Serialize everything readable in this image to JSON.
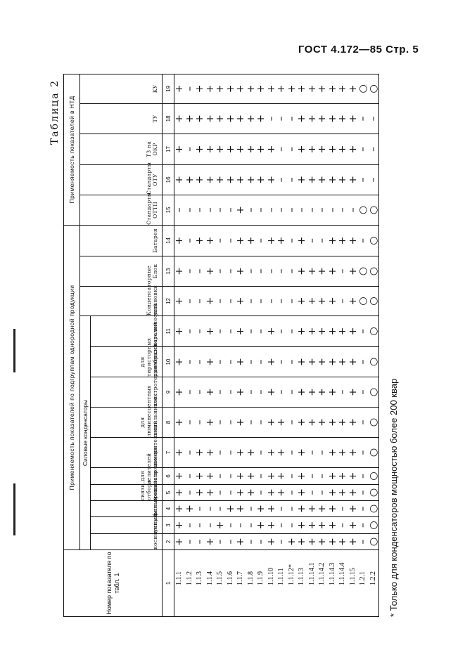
{
  "page_header": "ГОСТ 4.172—85 Стр. 5",
  "table_title": "Таблица 2",
  "groups": {
    "subgroups": "Применяемость показателей по подгруппам однородной продукции",
    "power_capacitors": "Силовые конденсаторы",
    "ntd": "Применяемость показателей в НТД"
  },
  "columns": [
    {
      "num": "1",
      "label": "Номер показателя по табл. 1"
    },
    {
      "num": "2",
      "label": "косинусный",
      "values": "+––+––+––+–+++++++–○"
    },
    {
      "num": "3",
      "label": "импульсный",
      "values": "+–––+–––++––++++–+–○"
    },
    {
      "num": "4",
      "label": "фильтровый",
      "values": "++–––++–++––++++–+–○"
    },
    {
      "num": "5",
      "label": "связи, отбора мощности",
      "values": "+–++––++–++–+––+++–○"
    },
    {
      "num": "6",
      "label": "для делителей напряжения",
      "values": "+–++––++–++–+––+++–○"
    },
    {
      "num": "7",
      "label": "измерительный",
      "values": "+–++––++–++–+––+++–○"
    },
    {
      "num": "8",
      "label": "для люминесцентных светильников",
      "values": "+––+––+––++–++++++–○"
    },
    {
      "num": "9",
      "label": "электротермический",
      "values": "+––+––+––+––++++–+–○"
    },
    {
      "num": "10",
      "label": "для тиристорных преобразователей",
      "values": "+––+––+––+––++++++–○"
    },
    {
      "num": "11",
      "label": "керамический",
      "values": "+––+––+––+––++++++–○"
    },
    {
      "num": "12",
      "label": "Конденсаторные установки",
      "values": "+––+––+–––––++++–+○○"
    },
    {
      "num": "13",
      "label": "Блок",
      "values": "+––+––+–––––++++–+○○"
    },
    {
      "num": "14",
      "label": "Батарея",
      "values": "+–++––++–++–+––+++–○"
    },
    {
      "num": "15",
      "label": "Стандарты ОТТП",
      "values": "––––––+–––––––––––○○"
    },
    {
      "num": "16",
      "label": "Стандарты ОТУ",
      "values": "++++++++++––++++++––"
    },
    {
      "num": "17",
      "label": "ТЗ на ОКР",
      "values": "+–++++++++––++++++––"
    },
    {
      "num": "18",
      "label": "ТУ",
      "values": "+++++++++–––++++++––"
    },
    {
      "num": "19",
      "label": "КУ",
      "values": "+–++++++++++++++++○○"
    }
  ],
  "rows": [
    "1.1.1",
    "1.1.2",
    "1.1.3",
    "1.1.4",
    "1.1.5",
    "1.1.6",
    "1.1.7",
    "1.1.8",
    "1.1.9",
    "1.1.10",
    "1.1.11",
    "1.1.12*",
    "1.1.13",
    "1.1.14.1",
    "1.1.14.2",
    "1.1.14.3",
    "1.1.14.4",
    "1.1.15",
    "1.2.1",
    "1.2.2"
  ],
  "footnote": "* Только для конденсаторов мощностью более 200 квар"
}
